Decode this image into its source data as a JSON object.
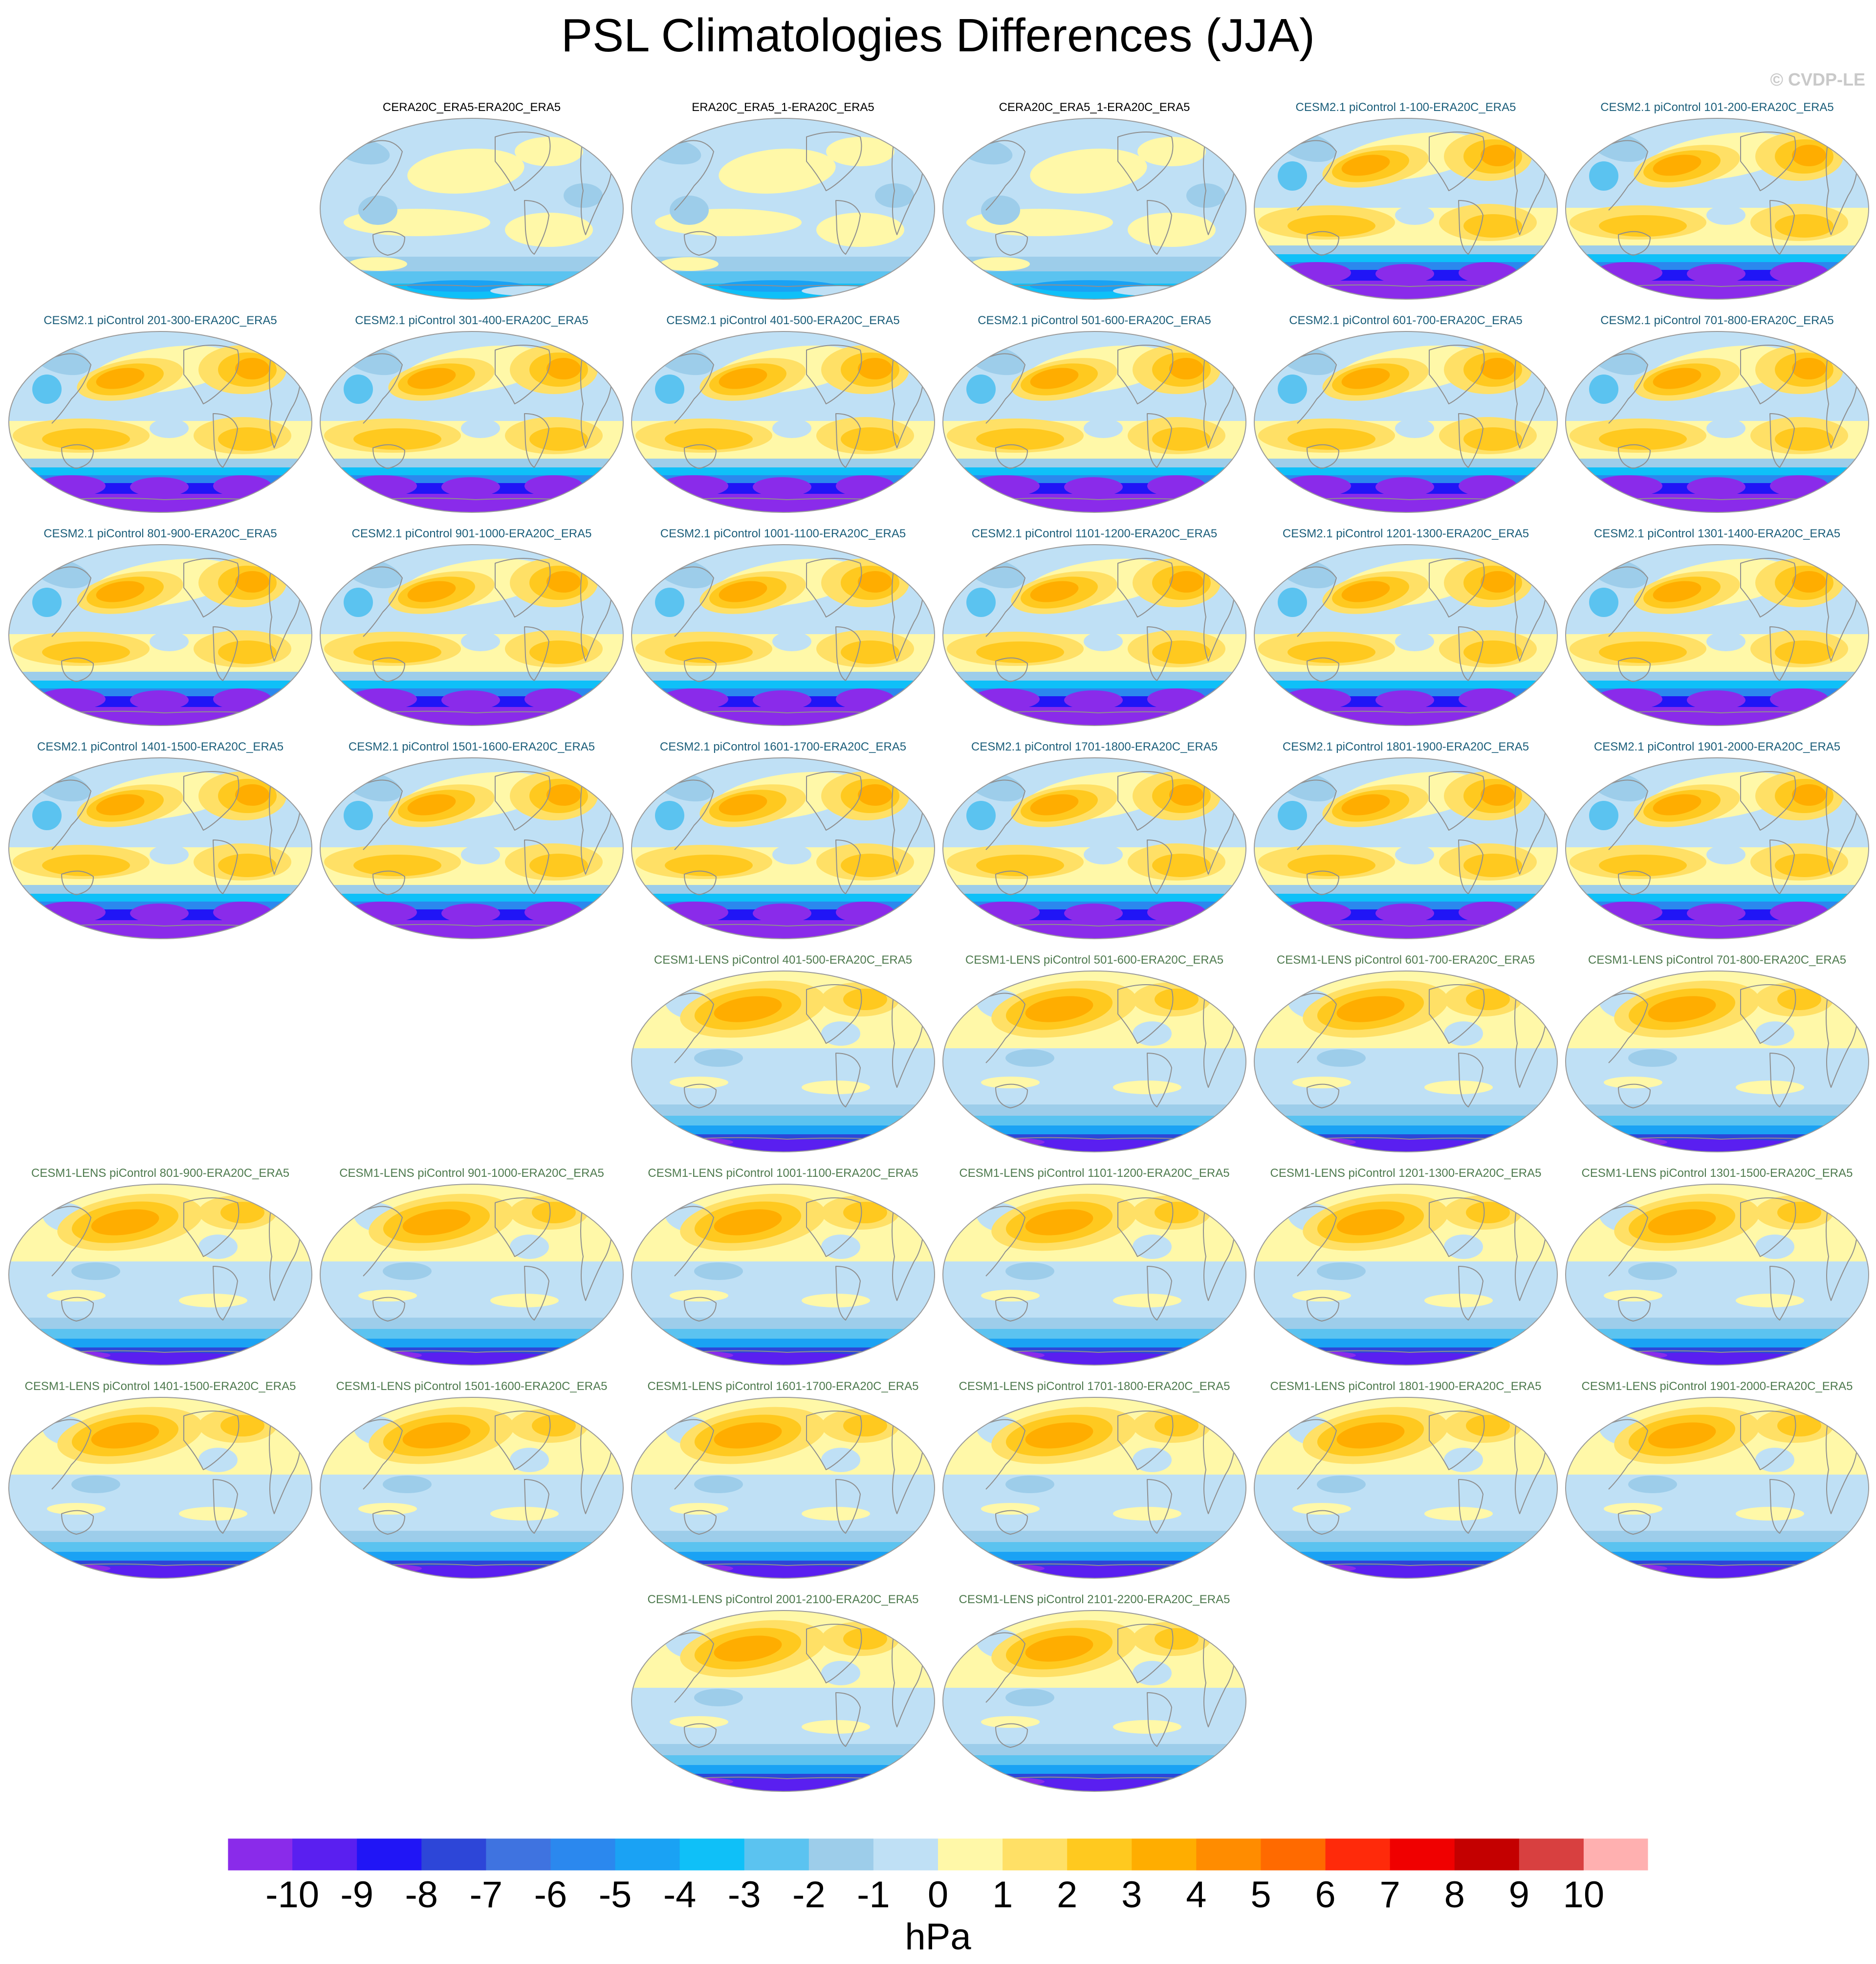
{
  "figure": {
    "title": "PSL Climatologies Differences (JJA)",
    "credit": "© CVDP-LE",
    "units": "hPa"
  },
  "group_colors": {
    "obs": "#000000",
    "cesm2": "#1b5e7a",
    "cesm1": "#4e7a4e"
  },
  "chart_data": {
    "type": "heatmap",
    "title": "PSL Climatologies Differences (JJA)",
    "variable": "PSL",
    "season": "JJA",
    "projection": "global map (equal-area ellipse)",
    "colorbar": {
      "label": "hPa",
      "ticks": [
        "-10",
        "-9",
        "-8",
        "-7",
        "-6",
        "-5",
        "-4",
        "-3",
        "-2",
        "-1",
        "0",
        "1",
        "2",
        "3",
        "4",
        "5",
        "6",
        "7",
        "8",
        "9",
        "10"
      ],
      "colors": [
        "#8a2bea",
        "#5a1ff0",
        "#2015f6",
        "#2d46d8",
        "#3f73e0",
        "#2b88ee",
        "#1aa2f4",
        "#0fc0f8",
        "#5bc3f0",
        "#9dcdea",
        "#bfe0f5",
        "#fff8a8",
        "#ffe066",
        "#ffc91f",
        "#ffad00",
        "#ff8c00",
        "#ff6a00",
        "#ff2a0a",
        "#f00000",
        "#c40000",
        "#d84040",
        "#ffb0b0"
      ]
    },
    "panels": [
      {
        "name": "CERA20C_ERA5-ERA20C_ERA5",
        "group": "obs",
        "pattern": "obs",
        "row": 0,
        "col": 1
      },
      {
        "name": "ERA20C_ERA5_1-ERA20C_ERA5",
        "group": "obs",
        "pattern": "obs",
        "row": 0,
        "col": 2
      },
      {
        "name": "CERA20C_ERA5_1-ERA20C_ERA5",
        "group": "obs",
        "pattern": "obs",
        "row": 0,
        "col": 3
      },
      {
        "name": "CESM2.1 piControl 1-100-ERA20C_ERA5",
        "group": "cesm2",
        "pattern": "cesm2",
        "row": 0,
        "col": 4
      },
      {
        "name": "CESM2.1 piControl 101-200-ERA20C_ERA5",
        "group": "cesm2",
        "pattern": "cesm2",
        "row": 0,
        "col": 5
      },
      {
        "name": "CESM2.1 piControl 201-300-ERA20C_ERA5",
        "group": "cesm2",
        "pattern": "cesm2",
        "row": 1,
        "col": 0
      },
      {
        "name": "CESM2.1 piControl 301-400-ERA20C_ERA5",
        "group": "cesm2",
        "pattern": "cesm2",
        "row": 1,
        "col": 1
      },
      {
        "name": "CESM2.1 piControl 401-500-ERA20C_ERA5",
        "group": "cesm2",
        "pattern": "cesm2",
        "row": 1,
        "col": 2
      },
      {
        "name": "CESM2.1 piControl 501-600-ERA20C_ERA5",
        "group": "cesm2",
        "pattern": "cesm2",
        "row": 1,
        "col": 3
      },
      {
        "name": "CESM2.1 piControl 601-700-ERA20C_ERA5",
        "group": "cesm2",
        "pattern": "cesm2",
        "row": 1,
        "col": 4
      },
      {
        "name": "CESM2.1 piControl 701-800-ERA20C_ERA5",
        "group": "cesm2",
        "pattern": "cesm2",
        "row": 1,
        "col": 5
      },
      {
        "name": "CESM2.1 piControl 801-900-ERA20C_ERA5",
        "group": "cesm2",
        "pattern": "cesm2",
        "row": 2,
        "col": 0
      },
      {
        "name": "CESM2.1 piControl 901-1000-ERA20C_ERA5",
        "group": "cesm2",
        "pattern": "cesm2",
        "row": 2,
        "col": 1
      },
      {
        "name": "CESM2.1 piControl 1001-1100-ERA20C_ERA5",
        "group": "cesm2",
        "pattern": "cesm2",
        "row": 2,
        "col": 2
      },
      {
        "name": "CESM2.1 piControl 1101-1200-ERA20C_ERA5",
        "group": "cesm2",
        "pattern": "cesm2",
        "row": 2,
        "col": 3
      },
      {
        "name": "CESM2.1 piControl 1201-1300-ERA20C_ERA5",
        "group": "cesm2",
        "pattern": "cesm2",
        "row": 2,
        "col": 4
      },
      {
        "name": "CESM2.1 piControl 1301-1400-ERA20C_ERA5",
        "group": "cesm2",
        "pattern": "cesm2",
        "row": 2,
        "col": 5
      },
      {
        "name": "CESM2.1 piControl 1401-1500-ERA20C_ERA5",
        "group": "cesm2",
        "pattern": "cesm2",
        "row": 3,
        "col": 0
      },
      {
        "name": "CESM2.1 piControl 1501-1600-ERA20C_ERA5",
        "group": "cesm2",
        "pattern": "cesm2",
        "row": 3,
        "col": 1
      },
      {
        "name": "CESM2.1 piControl 1601-1700-ERA20C_ERA5",
        "group": "cesm2",
        "pattern": "cesm2",
        "row": 3,
        "col": 2
      },
      {
        "name": "CESM2.1 piControl 1701-1800-ERA20C_ERA5",
        "group": "cesm2",
        "pattern": "cesm2",
        "row": 3,
        "col": 3
      },
      {
        "name": "CESM2.1 piControl 1801-1900-ERA20C_ERA5",
        "group": "cesm2",
        "pattern": "cesm2",
        "row": 3,
        "col": 4
      },
      {
        "name": "CESM2.1 piControl 1901-2000-ERA20C_ERA5",
        "group": "cesm2",
        "pattern": "cesm2",
        "row": 3,
        "col": 5
      },
      {
        "name": "CESM1-LENS piControl 401-500-ERA20C_ERA5",
        "group": "cesm1",
        "pattern": "cesm1",
        "row": 4,
        "col": 2
      },
      {
        "name": "CESM1-LENS piControl 501-600-ERA20C_ERA5",
        "group": "cesm1",
        "pattern": "cesm1",
        "row": 4,
        "col": 3
      },
      {
        "name": "CESM1-LENS piControl 601-700-ERA20C_ERA5",
        "group": "cesm1",
        "pattern": "cesm1",
        "row": 4,
        "col": 4
      },
      {
        "name": "CESM1-LENS piControl 701-800-ERA20C_ERA5",
        "group": "cesm1",
        "pattern": "cesm1",
        "row": 4,
        "col": 5
      },
      {
        "name": "CESM1-LENS piControl 801-900-ERA20C_ERA5",
        "group": "cesm1",
        "pattern": "cesm1",
        "row": 5,
        "col": 0
      },
      {
        "name": "CESM1-LENS piControl 901-1000-ERA20C_ERA5",
        "group": "cesm1",
        "pattern": "cesm1",
        "row": 5,
        "col": 1
      },
      {
        "name": "CESM1-LENS piControl 1001-1100-ERA20C_ERA5",
        "group": "cesm1",
        "pattern": "cesm1",
        "row": 5,
        "col": 2
      },
      {
        "name": "CESM1-LENS piControl 1101-1200-ERA20C_ERA5",
        "group": "cesm1",
        "pattern": "cesm1",
        "row": 5,
        "col": 3
      },
      {
        "name": "CESM1-LENS piControl 1201-1300-ERA20C_ERA5",
        "group": "cesm1",
        "pattern": "cesm1",
        "row": 5,
        "col": 4
      },
      {
        "name": "CESM1-LENS piControl 1301-1500-ERA20C_ERA5",
        "group": "cesm1",
        "pattern": "cesm1",
        "row": 5,
        "col": 5
      },
      {
        "name": "CESM1-LENS piControl 1401-1500-ERA20C_ERA5",
        "group": "cesm1",
        "pattern": "cesm1",
        "row": 6,
        "col": 0
      },
      {
        "name": "CESM1-LENS piControl 1501-1600-ERA20C_ERA5",
        "group": "cesm1",
        "pattern": "cesm1",
        "row": 6,
        "col": 1
      },
      {
        "name": "CESM1-LENS piControl 1601-1700-ERA20C_ERA5",
        "group": "cesm1",
        "pattern": "cesm1",
        "row": 6,
        "col": 2
      },
      {
        "name": "CESM1-LENS piControl 1701-1800-ERA20C_ERA5",
        "group": "cesm1",
        "pattern": "cesm1",
        "row": 6,
        "col": 3
      },
      {
        "name": "CESM1-LENS piControl 1801-1900-ERA20C_ERA5",
        "group": "cesm1",
        "pattern": "cesm1",
        "row": 6,
        "col": 4
      },
      {
        "name": "CESM1-LENS piControl 1901-2000-ERA20C_ERA5",
        "group": "cesm1",
        "pattern": "cesm1",
        "row": 6,
        "col": 5
      },
      {
        "name": "CESM1-LENS piControl 2001-2100-ERA20C_ERA5",
        "group": "cesm1",
        "pattern": "cesm1",
        "row": 7,
        "col": 2
      },
      {
        "name": "CESM1-LENS piControl 2101-2200-ERA20C_ERA5",
        "group": "cesm1",
        "pattern": "cesm1",
        "row": 7,
        "col": 3
      }
    ]
  }
}
